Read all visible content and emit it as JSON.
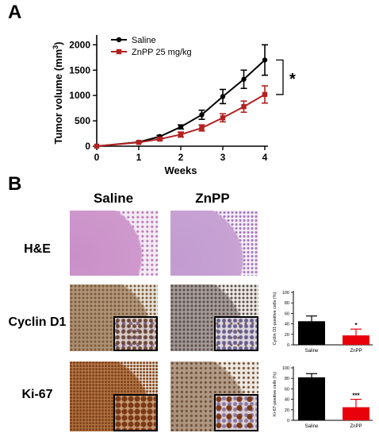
{
  "panels": {
    "a": "A",
    "b": "B"
  },
  "significance_a": "*",
  "chart_data": [
    {
      "type": "line",
      "xlabel": "Weeks",
      "ylabel": "Tumor volume (mm",
      "ylabel_sup": "3",
      "ylabel_close": ")",
      "x_ticks": [
        "0",
        "1",
        "2",
        "3",
        "4"
      ],
      "y_ticks": [
        "0",
        "500",
        "1000",
        "1500",
        "2000"
      ],
      "xlim": [
        0,
        4
      ],
      "ylim": [
        0,
        2100
      ],
      "legend_position": "top-left",
      "series": [
        {
          "name": "Saline",
          "color": "#000000",
          "marker": "circle",
          "x": [
            0,
            1,
            1.5,
            2,
            2.5,
            3,
            3.5,
            4
          ],
          "y": [
            0,
            80,
            190,
            380,
            620,
            980,
            1320,
            1700
          ],
          "err": [
            0,
            10,
            25,
            40,
            90,
            140,
            180,
            300
          ]
        },
        {
          "name": "ZnPP 25 mg/kg",
          "color": "#b22222",
          "marker": "square",
          "x": [
            0,
            1,
            1.5,
            2,
            2.5,
            3,
            3.5,
            4
          ],
          "y": [
            0,
            75,
            140,
            230,
            360,
            560,
            780,
            1020
          ],
          "err": [
            0,
            10,
            20,
            50,
            60,
            80,
            110,
            170
          ]
        }
      ]
    },
    {
      "type": "bar",
      "ylabel": "Cyclin D1-positive cells (%)",
      "categories": [
        "Saline",
        "ZnPP"
      ],
      "values": [
        45,
        18
      ],
      "errors": [
        10,
        12
      ],
      "colors": [
        "#000000",
        "#e8000b"
      ],
      "y_ticks": [
        "0",
        "20",
        "40",
        "60",
        "80",
        "100"
      ],
      "ylim": [
        0,
        100
      ],
      "significance": [
        "",
        "*"
      ]
    },
    {
      "type": "bar",
      "ylabel": "Ki-67-positive cells (%)",
      "categories": [
        "Saline",
        "ZnPP"
      ],
      "values": [
        82,
        25
      ],
      "errors": [
        7,
        15
      ],
      "colors": [
        "#000000",
        "#e8000b"
      ],
      "y_ticks": [
        "0",
        "20",
        "40",
        "60",
        "80",
        "100"
      ],
      "ylim": [
        0,
        100
      ],
      "significance": [
        "",
        "***"
      ]
    }
  ],
  "histology": {
    "columns": [
      "Saline",
      "ZnPP"
    ],
    "rows": [
      "H&E",
      "Cyclin D1",
      "Ki-67"
    ]
  }
}
